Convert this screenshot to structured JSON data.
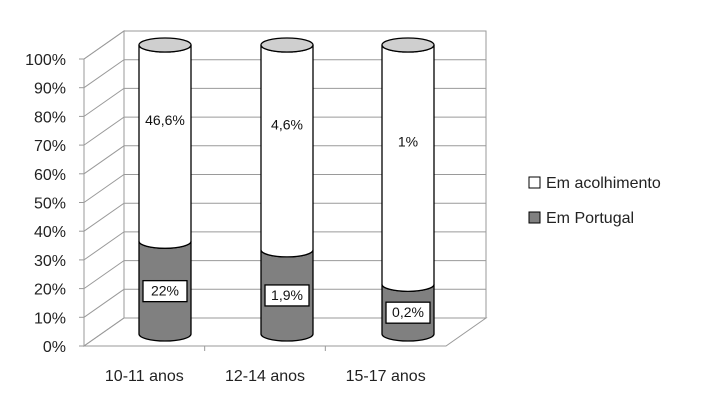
{
  "chart_data": {
    "type": "bar",
    "stacked": "percent",
    "style": "3d-cylinder",
    "categories": [
      "10-11 anos",
      "12-14 anos",
      "15-17 anos"
    ],
    "series": [
      {
        "name": "Em Portugal",
        "color": "#808080",
        "values": [
          33,
          30,
          18
        ],
        "labels": [
          "22%",
          "1,9%",
          "0,2%"
        ]
      },
      {
        "name": "Em acolhimento",
        "color": "#ffffff",
        "values": [
          67,
          70,
          82
        ],
        "labels": [
          "46,6%",
          "4,6%",
          "1%"
        ]
      }
    ],
    "y_ticks": [
      "0%",
      "10%",
      "20%",
      "30%",
      "40%",
      "50%",
      "60%",
      "70%",
      "80%",
      "90%",
      "100%"
    ],
    "ylim": [
      0,
      100
    ],
    "grid": true,
    "legend_position": "right"
  }
}
